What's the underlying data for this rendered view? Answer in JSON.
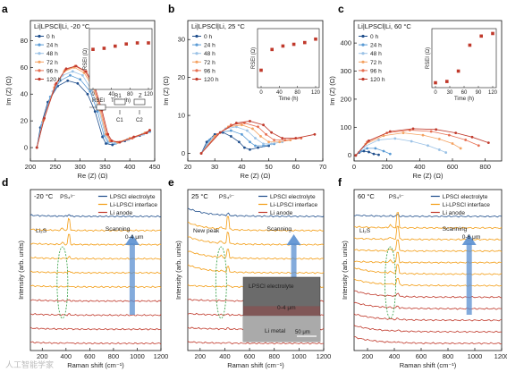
{
  "watermark": "人工智能学家",
  "chart_data": [
    {
      "id": "a",
      "type": "scatter",
      "panel_label": "a",
      "title": "Li|LPSCl|Li, -20 °C",
      "xlabel": "Re (Z) (Ω)",
      "ylabel": "Im (Z) (Ω)",
      "xlim": [
        200,
        450
      ],
      "ylim": [
        -10,
        95
      ],
      "xticks": [
        200,
        250,
        300,
        350,
        400,
        450
      ],
      "yticks": [
        0,
        20,
        40,
        60,
        80
      ],
      "series": [
        {
          "name": "0 h",
          "values": [
            [
              213,
              0
            ],
            [
              220,
              15
            ],
            [
              235,
              34
            ],
            [
              255,
              46
            ],
            [
              275,
              50
            ],
            [
              295,
              48
            ],
            [
              315,
              40
            ],
            [
              330,
              27
            ],
            [
              345,
              8
            ],
            [
              352,
              3
            ],
            [
              365,
              2
            ],
            [
              390,
              5
            ],
            [
              420,
              9
            ],
            [
              440,
              12
            ]
          ]
        },
        {
          "name": "24 h",
          "values": [
            [
              213,
              0
            ],
            [
              222,
              16
            ],
            [
              240,
              38
            ],
            [
              260,
              50
            ],
            [
              280,
              54
            ],
            [
              300,
              51
            ],
            [
              320,
              42
            ],
            [
              335,
              27
            ],
            [
              348,
              9
            ],
            [
              356,
              4
            ],
            [
              370,
              3
            ],
            [
              395,
              6
            ],
            [
              425,
              10
            ],
            [
              440,
              12
            ]
          ]
        },
        {
          "name": "48 h",
          "values": [
            [
              213,
              0
            ],
            [
              224,
              18
            ],
            [
              245,
              42
            ],
            [
              265,
              54
            ],
            [
              285,
              57
            ],
            [
              305,
              54
            ],
            [
              323,
              43
            ],
            [
              338,
              28
            ],
            [
              350,
              10
            ],
            [
              358,
              4
            ],
            [
              372,
              3
            ],
            [
              398,
              6
            ],
            [
              428,
              10
            ],
            [
              440,
              13
            ]
          ]
        },
        {
          "name": "72 h",
          "values": [
            [
              213,
              0
            ],
            [
              226,
              20
            ],
            [
              248,
              45
            ],
            [
              268,
              57
            ],
            [
              288,
              60
            ],
            [
              308,
              56
            ],
            [
              326,
              45
            ],
            [
              340,
              28
            ],
            [
              352,
              10
            ],
            [
              360,
              5
            ],
            [
              375,
              4
            ],
            [
              400,
              7
            ],
            [
              430,
              11
            ],
            [
              440,
              13
            ]
          ]
        },
        {
          "name": "96 h",
          "values": [
            [
              213,
              0
            ],
            [
              227,
              21
            ],
            [
              250,
              47
            ],
            [
              270,
              58
            ],
            [
              290,
              61
            ],
            [
              310,
              57
            ],
            [
              328,
              45
            ],
            [
              342,
              28
            ],
            [
              354,
              10
            ],
            [
              362,
              5
            ],
            [
              378,
              4
            ],
            [
              405,
              7
            ],
            [
              432,
              11
            ],
            [
              440,
              13
            ]
          ]
        },
        {
          "name": "120 h",
          "values": [
            [
              213,
              0
            ],
            [
              228,
              22
            ],
            [
              252,
              48
            ],
            [
              272,
              59
            ],
            [
              292,
              61
            ],
            [
              312,
              57
            ],
            [
              330,
              45
            ],
            [
              344,
              28
            ],
            [
              356,
              10
            ],
            [
              364,
              5
            ],
            [
              380,
              4
            ],
            [
              408,
              8
            ],
            [
              434,
              11
            ],
            [
              440,
              13
            ]
          ]
        }
      ],
      "inset": {
        "ylabel": "RSEI (Ω)",
        "xlabel": "Time (h)",
        "xlim": [
          0,
          120
        ],
        "ylim": [
          0,
          100
        ],
        "xticks": [
          0,
          40,
          80,
          120
        ],
        "yticks": [
          0,
          50,
          100
        ],
        "x": [
          0,
          24,
          48,
          72,
          96,
          120
        ],
        "y": [
          68,
          70,
          74,
          78,
          80,
          80
        ]
      },
      "circuit_labels": [
        "RSEI",
        "R1",
        "Z",
        "C1",
        "C2"
      ]
    },
    {
      "id": "b",
      "type": "scatter",
      "panel_label": "b",
      "title": "Li|LPSCl|Li, 25 °C",
      "xlabel": "Re (Z) (Ω)",
      "ylabel": "Im (Z) (Ω)",
      "xlim": [
        20,
        70
      ],
      "ylim": [
        -2,
        35
      ],
      "xticks": [
        20,
        30,
        40,
        50,
        60,
        70
      ],
      "yticks": [
        0,
        10,
        20,
        30
      ],
      "series": [
        {
          "name": "0 h",
          "values": [
            [
              25,
              0
            ],
            [
              27,
              3
            ],
            [
              30,
              5
            ],
            [
              33,
              5.5
            ],
            [
              36,
              4.5
            ],
            [
              39,
              3
            ],
            [
              41,
              1.5
            ],
            [
              43,
              1
            ],
            [
              46,
              1.5
            ],
            [
              50,
              2
            ]
          ]
        },
        {
          "name": "24 h",
          "values": [
            [
              25,
              0
            ],
            [
              28,
              3.5
            ],
            [
              32,
              5.5
            ],
            [
              36,
              6
            ],
            [
              40,
              5
            ],
            [
              43,
              3
            ],
            [
              45,
              2
            ],
            [
              48,
              2
            ],
            [
              52,
              2.5
            ]
          ]
        },
        {
          "name": "48 h",
          "values": [
            [
              25,
              0
            ],
            [
              29,
              4
            ],
            [
              34,
              6.5
            ],
            [
              38,
              7
            ],
            [
              42,
              6
            ],
            [
              45,
              4
            ],
            [
              48,
              2.5
            ],
            [
              51,
              2.5
            ],
            [
              55,
              3
            ]
          ]
        },
        {
          "name": "72 h",
          "values": [
            [
              25,
              0
            ],
            [
              30,
              4.5
            ],
            [
              35,
              7
            ],
            [
              40,
              7.5
            ],
            [
              44,
              6.5
            ],
            [
              47,
              4.5
            ],
            [
              50,
              3
            ],
            [
              54,
              3
            ],
            [
              58,
              3.5
            ]
          ]
        },
        {
          "name": "96 h",
          "values": [
            [
              25,
              0
            ],
            [
              31,
              5
            ],
            [
              36,
              7.5
            ],
            [
              41,
              8
            ],
            [
              46,
              7
            ],
            [
              49,
              5
            ],
            [
              52,
              3.5
            ],
            [
              56,
              3.5
            ],
            [
              62,
              4
            ]
          ]
        },
        {
          "name": "120 h",
          "values": [
            [
              25,
              0
            ],
            [
              32,
              5.5
            ],
            [
              38,
              8
            ],
            [
              43,
              8.5
            ],
            [
              48,
              7.5
            ],
            [
              51,
              5.5
            ],
            [
              55,
              4
            ],
            [
              60,
              4
            ],
            [
              67,
              5
            ]
          ]
        }
      ],
      "inset": {
        "ylabel": "RSEI (Ω)",
        "xlabel": "Time (h)",
        "xlim": [
          0,
          120
        ],
        "ylim": [
          0,
          15
        ],
        "xticks": [
          0,
          40,
          80,
          120
        ],
        "yticks": [
          0,
          5,
          10,
          15
        ],
        "x": [
          0,
          24,
          48,
          72,
          96,
          120
        ],
        "y": [
          4,
          10,
          11,
          11.5,
          12,
          13
        ]
      }
    },
    {
      "id": "c",
      "type": "scatter",
      "panel_label": "c",
      "title": "Li|LPSCl|Li, 60 °C",
      "xlabel": "Re (Z) (Ω)",
      "ylabel": "Im (Z) (Ω)",
      "xlim": [
        0,
        900
      ],
      "ylim": [
        -20,
        480
      ],
      "xticks": [
        0,
        200,
        400,
        600,
        800
      ],
      "yticks": [
        0,
        100,
        200,
        300,
        400
      ],
      "series": [
        {
          "name": "0 h",
          "values": [
            [
              10,
              0
            ],
            [
              30,
              10
            ],
            [
              60,
              15
            ],
            [
              90,
              12
            ],
            [
              120,
              5
            ],
            [
              150,
              2
            ]
          ]
        },
        {
          "name": "24 h",
          "values": [
            [
              10,
              0
            ],
            [
              40,
              15
            ],
            [
              80,
              25
            ],
            [
              130,
              25
            ],
            [
              180,
              15
            ],
            [
              220,
              5
            ]
          ]
        },
        {
          "name": "48 h",
          "values": [
            [
              10,
              0
            ],
            [
              60,
              30
            ],
            [
              150,
              55
            ],
            [
              250,
              60
            ],
            [
              350,
              50
            ],
            [
              450,
              35
            ],
            [
              520,
              20
            ],
            [
              560,
              10
            ]
          ]
        },
        {
          "name": "72 h",
          "values": [
            [
              10,
              0
            ],
            [
              70,
              40
            ],
            [
              180,
              70
            ],
            [
              300,
              80
            ],
            [
              420,
              72
            ],
            [
              520,
              58
            ],
            [
              600,
              42
            ],
            [
              650,
              25
            ]
          ]
        },
        {
          "name": "96 h",
          "values": [
            [
              10,
              0
            ],
            [
              80,
              48
            ],
            [
              200,
              80
            ],
            [
              340,
              90
            ],
            [
              470,
              85
            ],
            [
              580,
              72
            ],
            [
              680,
              55
            ],
            [
              760,
              35
            ]
          ]
        },
        {
          "name": "120 h",
          "values": [
            [
              10,
              0
            ],
            [
              90,
              52
            ],
            [
              220,
              85
            ],
            [
              360,
              95
            ],
            [
              500,
              92
            ],
            [
              620,
              80
            ],
            [
              720,
              65
            ],
            [
              820,
              45
            ]
          ]
        }
      ],
      "inset": {
        "ylabel": "RSEI (Ω)",
        "xlabel": "Time (h)",
        "xlim": [
          0,
          120
        ],
        "ylim": [
          0,
          200
        ],
        "xticks": [
          0,
          30,
          60,
          90,
          120
        ],
        "yticks": [
          0,
          100,
          200
        ],
        "x": [
          0,
          24,
          48,
          72,
          96,
          120
        ],
        "y": [
          5,
          10,
          50,
          150,
          185,
          195
        ]
      }
    },
    {
      "id": "d",
      "type": "line",
      "panel_label": "d",
      "title": "-20 °C",
      "xlabel": "Raman shift (cm⁻¹)",
      "ylabel": "Intensity (arb. units)",
      "xlim": [
        100,
        1200
      ],
      "xticks": [
        200,
        400,
        600,
        800,
        1000,
        1200
      ],
      "legend": [
        "LPSCl electrolyte",
        "Li-LPSCl interface",
        "Li anode"
      ],
      "annotations": {
        "peak": "PS₄³⁻",
        "secondary": "Li₂S",
        "scan": "Scanning",
        "depth": "0-4 μm"
      },
      "n_traces": 10,
      "peak_position": 425,
      "peak_heights": [
        0.1,
        0.7,
        0.6,
        0.1,
        0.1,
        0.05,
        0.05,
        0.05,
        0.05,
        0.05
      ]
    },
    {
      "id": "e",
      "type": "line",
      "panel_label": "e",
      "title": "25 °C",
      "xlabel": "Raman shift (cm⁻¹)",
      "ylabel": "Intensity (arb. units)",
      "xlim": [
        100,
        1200
      ],
      "xticks": [
        200,
        400,
        600,
        800,
        1000,
        1200
      ],
      "legend": [
        "LPSCl electrolyte",
        "Li-LPSCl interface",
        "Li anode"
      ],
      "annotations": {
        "peak": "PS₄³⁻",
        "secondary": "New peak",
        "scan": "Scanning",
        "micro_title": "LPSCl electrolyte",
        "micro_depth": "0-4 μm",
        "micro_bottom": "Li metal",
        "scale": "50 μm"
      },
      "n_traces": 10,
      "peak_position": 425,
      "peak_heights": [
        0.1,
        0.8,
        0.7,
        0.5,
        0.3,
        0.1,
        0.05,
        0.05,
        0.05,
        0.05
      ]
    },
    {
      "id": "f",
      "type": "line",
      "panel_label": "f",
      "title": "60 °C",
      "xlabel": "Raman shift (cm⁻¹)",
      "ylabel": "Intensity (arb. units)",
      "xlim": [
        100,
        1200
      ],
      "xticks": [
        200,
        400,
        600,
        800,
        1000,
        1200
      ],
      "legend": [
        "LPSCl electrolyte",
        "Li-LPSCl interface",
        "Li anode"
      ],
      "annotations": {
        "peak": "PS₄³⁻",
        "secondary": "Li₂S",
        "scan": "Scanning",
        "depth": "0-6 μm"
      },
      "n_traces": 12,
      "peak_position": 425,
      "peak_heights": [
        0.1,
        0.9,
        0.8,
        0.7,
        0.6,
        0.5,
        0.4,
        0.2,
        0.1,
        0.05,
        0.05,
        0.05
      ]
    }
  ],
  "colors": {
    "eis": [
      "#1f4e8c",
      "#5a9bd5",
      "#9bc2e6",
      "#f4a261",
      "#e76f51",
      "#c0392b"
    ],
    "inset_marker": "#c0392b",
    "raman_electrolyte": "#1f4e8c",
    "raman_interface": "#f39c12",
    "raman_anode": "#c0392b",
    "annotation_green": "#2e9e3f",
    "annotation_orange": "#e67e22",
    "arrow": "#5a8fd0"
  }
}
